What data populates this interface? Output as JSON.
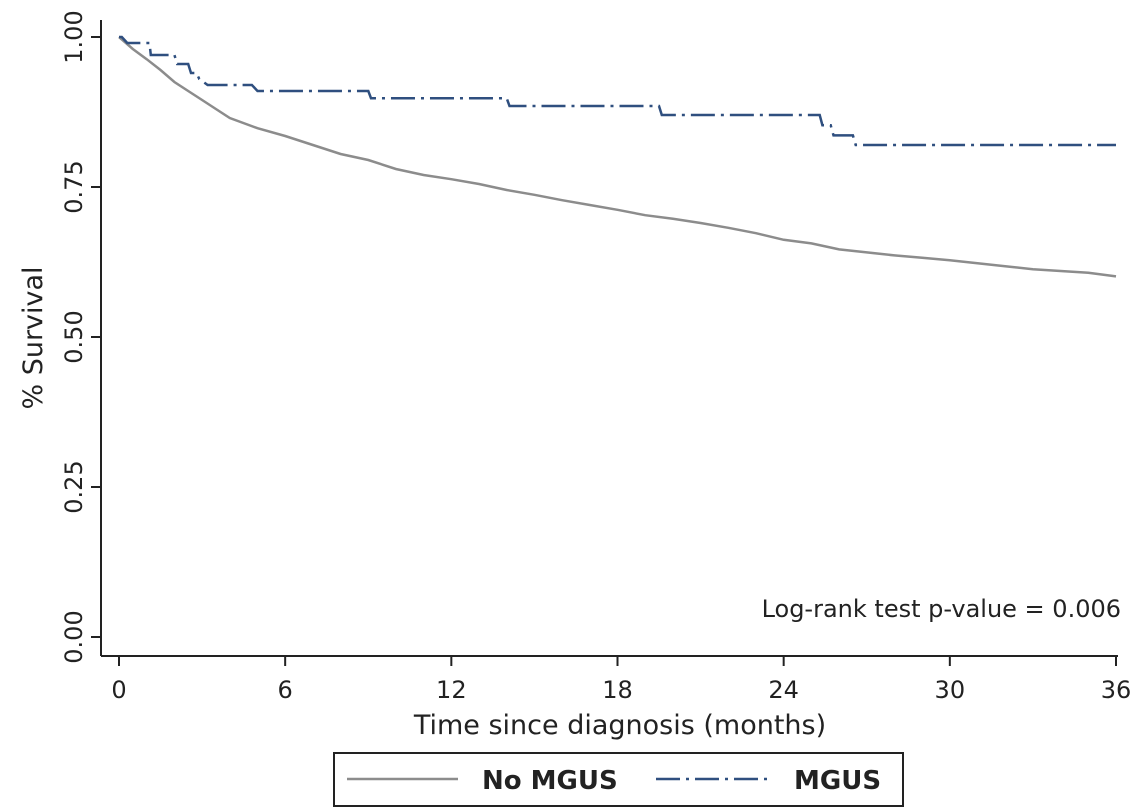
{
  "chart_data": {
    "type": "line",
    "title": "",
    "xlabel": "Time since diagnosis (months)",
    "ylabel": "% Survival",
    "xlim": [
      0,
      36
    ],
    "ylim": [
      0,
      1
    ],
    "x_ticks": [
      "0",
      "6",
      "12",
      "18",
      "24",
      "30",
      "36"
    ],
    "y_ticks": [
      "0.00",
      "0.25",
      "0.50",
      "0.75",
      "1.00"
    ],
    "grid": false,
    "legend_position": "bottom",
    "annotation": "Log-rank test p-value = 0.006",
    "series": [
      {
        "name": "No MGUS",
        "color": "#8c8c8c",
        "style": "solid",
        "x": [
          0,
          0.5,
          1,
          1.5,
          2,
          2.5,
          3,
          3.5,
          4,
          5,
          6,
          7,
          8,
          9,
          10,
          11,
          12,
          13,
          14,
          15,
          16,
          17,
          18,
          19,
          20,
          21,
          22,
          23,
          24,
          25,
          26,
          27,
          28,
          29,
          30,
          31,
          32,
          33,
          34,
          35,
          36
        ],
        "values": [
          1.0,
          0.98,
          0.963,
          0.945,
          0.925,
          0.91,
          0.895,
          0.88,
          0.865,
          0.848,
          0.835,
          0.82,
          0.805,
          0.795,
          0.78,
          0.77,
          0.763,
          0.755,
          0.745,
          0.737,
          0.728,
          0.72,
          0.712,
          0.703,
          0.697,
          0.69,
          0.682,
          0.673,
          0.662,
          0.656,
          0.646,
          0.641,
          0.636,
          0.632,
          0.628,
          0.623,
          0.618,
          0.613,
          0.61,
          0.607,
          0.601
        ]
      },
      {
        "name": "MGUS",
        "color": "#2f4f7f",
        "style": "dashdot",
        "x": [
          0,
          0.1,
          0.3,
          0.5,
          0.55,
          1.1,
          1.15,
          2.0,
          2.1,
          2.5,
          2.6,
          2.8,
          2.9,
          3.2,
          4.8,
          5.0,
          9.0,
          9.1,
          14.0,
          14.1,
          19.5,
          19.6,
          25.3,
          25.4,
          25.7,
          25.8,
          26.5,
          26.6,
          36
        ],
        "values": [
          1.0,
          1.0,
          0.99,
          0.99,
          0.99,
          0.99,
          0.97,
          0.97,
          0.955,
          0.955,
          0.94,
          0.94,
          0.93,
          0.92,
          0.92,
          0.91,
          0.91,
          0.898,
          0.898,
          0.885,
          0.885,
          0.87,
          0.87,
          0.853,
          0.853,
          0.836,
          0.836,
          0.82,
          0.82
        ]
      }
    ]
  }
}
